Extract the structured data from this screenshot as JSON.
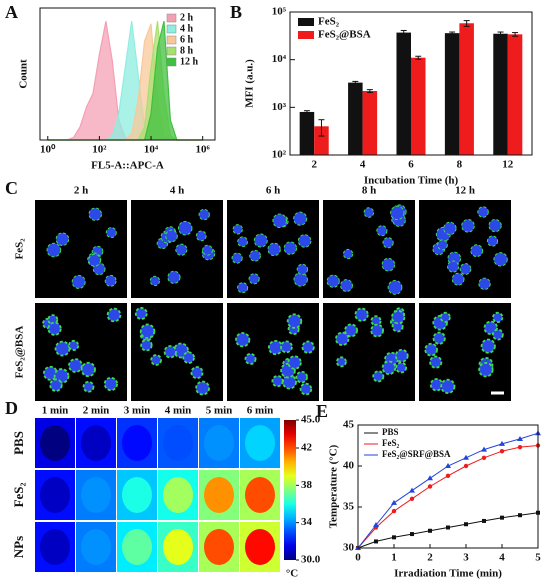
{
  "panel_labels": [
    "A",
    "B",
    "C",
    "D",
    "E"
  ],
  "microscopy": {
    "columns": [
      "2 h",
      "4 h",
      "6 h",
      "8 h",
      "12 h"
    ],
    "rows": [
      "FeS₂",
      "FeS₂@BSA"
    ]
  },
  "chart_data": [
    {
      "type": "area",
      "xlabel": "FL5-A::APC-A",
      "ylabel": "Count",
      "xscale": "log",
      "xlim": [
        0.5,
        3000000
      ],
      "xticks": [
        {
          "value": 1,
          "label": "10⁰"
        },
        {
          "value": 100,
          "label": "10²"
        },
        {
          "value": 10000,
          "label": "10⁴"
        },
        {
          "value": 1000000,
          "label": "10⁶"
        }
      ],
      "ylim": [
        0,
        100
      ],
      "yticks": [],
      "legend": "upper right",
      "x": [
        1,
        1.78,
        3.16,
        5.62,
        10,
        17.8,
        31.6,
        56.2,
        100,
        178,
        316,
        562,
        1000,
        1778,
        3162,
        5623,
        10000,
        17783,
        31623,
        56234,
        100000,
        177828,
        316228,
        562341,
        1000000
      ],
      "series": [
        {
          "name": "2 h",
          "color": "#f4a0b4",
          "values": [
            0,
            0,
            0,
            0,
            2,
            10,
            25,
            35,
            65,
            90,
            60,
            15,
            2,
            0,
            0,
            0,
            0,
            0,
            0,
            0,
            0,
            0,
            0,
            0,
            0
          ]
        },
        {
          "name": "4 h",
          "color": "#8eeee0",
          "values": [
            0,
            0,
            0,
            0,
            0,
            0,
            0,
            0,
            0,
            0,
            3,
            20,
            55,
            90,
            50,
            10,
            0,
            0,
            0,
            0,
            0,
            0,
            0,
            0,
            0
          ]
        },
        {
          "name": "6 h",
          "color": "#f8c89a",
          "values": [
            0,
            0,
            0,
            0,
            0,
            0,
            0,
            0,
            0,
            0,
            0,
            0,
            0,
            5,
            30,
            75,
            88,
            30,
            3,
            0,
            0,
            0,
            0,
            0,
            0
          ]
        },
        {
          "name": "8 h",
          "color": "#a8e070",
          "values": [
            0,
            0,
            0,
            0,
            0,
            0,
            0,
            0,
            0,
            0,
            0,
            0,
            0,
            0,
            0,
            10,
            55,
            90,
            35,
            3,
            0,
            0,
            0,
            0,
            0
          ]
        },
        {
          "name": "12 h",
          "color": "#40c040",
          "values": [
            0,
            0,
            0,
            0,
            0,
            0,
            0,
            0,
            0,
            0,
            0,
            0,
            0,
            0,
            0,
            0,
            20,
            70,
            90,
            15,
            0,
            0,
            0,
            0,
            0
          ]
        }
      ]
    },
    {
      "type": "bar",
      "xlabel": "Incubation Time (h)",
      "ylabel": "MFI (a.u.)",
      "yscale": "log",
      "categories": [
        "2",
        "4",
        "6",
        "8",
        "12"
      ],
      "ylim": [
        100,
        100000
      ],
      "yticks": [
        {
          "value": 100,
          "label": "10²"
        },
        {
          "value": 1000,
          "label": "10³"
        },
        {
          "value": 10000,
          "label": "10⁴"
        },
        {
          "value": 100000,
          "label": "10⁵"
        }
      ],
      "legend": "upper left",
      "series": [
        {
          "name": "FeS₂",
          "color": "#111111",
          "values": [
            800,
            3300,
            37000,
            36000,
            35000
          ],
          "errors": [
            50,
            200,
            4000,
            2000,
            3000
          ]
        },
        {
          "name": "FeS₂@BSA",
          "color": "#ee1c1c",
          "values": [
            400,
            2200,
            11000,
            58000,
            34000
          ],
          "errors": [
            150,
            150,
            800,
            8000,
            3000
          ]
        }
      ]
    },
    {
      "type": "heatmap",
      "x_categories": [
        "1 min",
        "2 min",
        "3 min",
        "4 min",
        "5 min",
        "6 min"
      ],
      "y_categories": [
        "PBS",
        "FeS₂",
        "NPs"
      ],
      "values": [
        [
          30,
          31,
          32,
          33,
          34,
          35
        ],
        [
          31,
          34,
          36,
          38,
          41,
          42
        ],
        [
          31,
          34,
          37,
          39,
          42,
          43
        ]
      ],
      "zlim": [
        30,
        45
      ],
      "colormap": "jet",
      "zticks": [
        {
          "value": 45,
          "label": "45.0"
        },
        42,
        38,
        34,
        {
          "value": 30,
          "label": "30.0"
        }
      ],
      "colorbar_label": "°C"
    },
    {
      "type": "line",
      "xlabel": "Irradiation Time (min)",
      "ylabel": "Temperature (°C)",
      "x": [
        0,
        0.5,
        1,
        1.5,
        2,
        2.5,
        3,
        3.5,
        4,
        4.5,
        5
      ],
      "xlim": [
        0,
        5
      ],
      "xticks": [
        0,
        1,
        2,
        3,
        4,
        5
      ],
      "ylim": [
        30,
        45
      ],
      "yticks": [
        30,
        35,
        40,
        45
      ],
      "legend": "upper left",
      "series": [
        {
          "name": "PBS",
          "color": "#111111",
          "marker": "s",
          "values": [
            30,
            30.8,
            31.3,
            31.7,
            32.1,
            32.5,
            32.9,
            33.3,
            33.7,
            34.0,
            34.3
          ]
        },
        {
          "name": "FeS₂",
          "color": "#ee1c1c",
          "marker": "o",
          "values": [
            30,
            32.5,
            34.5,
            36,
            37.5,
            38.8,
            40,
            41,
            41.8,
            42.3,
            42.5
          ]
        },
        {
          "name": "FeS₂@SRF@BSA",
          "color": "#2244dd",
          "marker": "^",
          "values": [
            30,
            32.8,
            35.5,
            37,
            38.5,
            40,
            41,
            42,
            42.7,
            43.3,
            44
          ]
        }
      ]
    }
  ]
}
